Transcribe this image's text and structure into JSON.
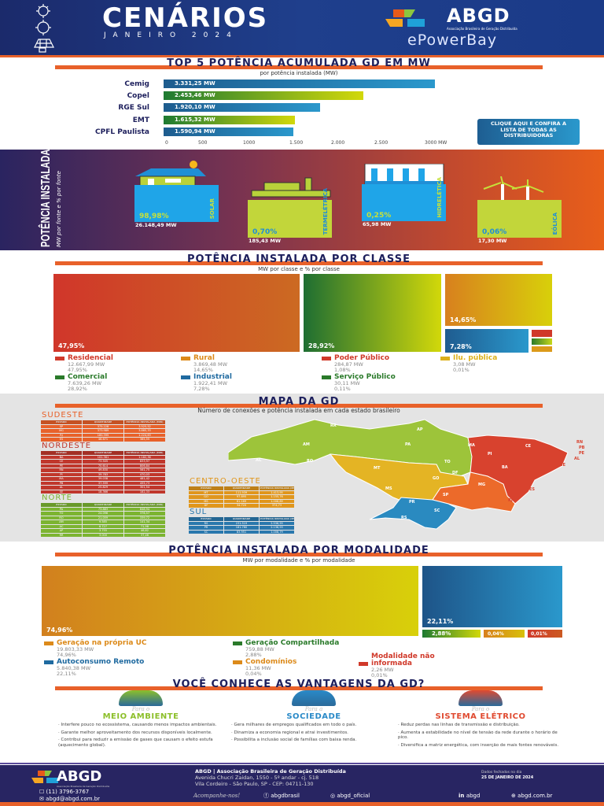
{
  "header": {
    "title": "CENÁRIOS",
    "subtitle": "JANEIRO 2024",
    "logo_text": "ABGD",
    "logo_sub": "Associação Brasileira de Geração Distribuída",
    "partner": "ePowerBay",
    "icons": [
      "sun-icon",
      "gear-sun-icon",
      "solar-panel-icon"
    ]
  },
  "top5": {
    "title": "TOP 5 POTÊNCIA ACUMULADA GD EM MW",
    "subtitle": "por potência instalada (MW)",
    "bars": [
      {
        "name": "Cemig",
        "value": 3331.25,
        "label": "3.331,25 MW",
        "color": "blue"
      },
      {
        "name": "Copel",
        "value": 2453.46,
        "label": "2.453,46 MW",
        "color": "green"
      },
      {
        "name": "RGE Sul",
        "value": 1920.1,
        "label": "1.920,10 MW",
        "color": "blue"
      },
      {
        "name": "EMT",
        "value": 1615.32,
        "label": "1.615,32 MW",
        "color": "green"
      },
      {
        "name": "CPFL Paulista",
        "value": 1590.94,
        "label": "1.590,94 MW",
        "color": "blue"
      }
    ],
    "ticks": [
      "0",
      "500",
      "1000",
      "1.500",
      "2.000",
      "2.500",
      "3000 MW"
    ],
    "cta": "CLIQUE AQUI E CONFIRA A LISTA DE TODAS AS DISTRIBUIDORAS"
  },
  "fontes": {
    "title": "POTÊNCIA INSTALADA",
    "subtitle": "MW por fonte e % por fonte",
    "items": [
      {
        "name": "SOLAR",
        "pct": "98,98%",
        "mw": "26.148,49 MW",
        "icon": "solar-house-icon"
      },
      {
        "name": "TERMELÉTRICA",
        "pct": "0,70%",
        "mw": "185,43 MW",
        "icon": "factory-icon"
      },
      {
        "name": "HIDRELÉTICA",
        "pct": "0,25%",
        "mw": "65,98 MW",
        "icon": "dam-icon"
      },
      {
        "name": "EÓLICA",
        "pct": "0,06%",
        "mw": "17,30 MW",
        "icon": "wind-turbine-icon"
      }
    ]
  },
  "classe": {
    "title": "POTÊNCIA INSTALADA POR CLASSE",
    "subtitle": "MW por classe e % por classe",
    "items": [
      {
        "name": "Residencial",
        "mw": "12.667,99 MW",
        "pct": "47,95%",
        "color": "#d0392a"
      },
      {
        "name": "Rural",
        "mw": "3.869,48 MW",
        "pct": "14,65%",
        "color": "#dc8a1a"
      },
      {
        "name": "Poder Público",
        "mw": "284,87 MW",
        "pct": "1,08%",
        "color": "#d0392a"
      },
      {
        "name": "Ilu. pública",
        "mw": "3,08 MW",
        "pct": "0,01%",
        "color": "#dcb01a"
      },
      {
        "name": "Comercial",
        "mw": "7.639,26 MW",
        "pct": "28,92%",
        "color": "#2a7a2a"
      },
      {
        "name": "Industrial",
        "mw": "1.922,41 MW",
        "pct": "7,28%",
        "color": "#1f6aa0"
      },
      {
        "name": "Serviço Público",
        "mw": "30,11 MW",
        "pct": "0,11%",
        "color": "#2a7a2a"
      }
    ]
  },
  "mapa": {
    "title": "MAPA DA GD",
    "subtitle": "Número de conexões e potência instalada em cada estado brasileiro",
    "headers": [
      "ESTADO",
      "QUANTIDADE",
      "POTÊNCIA INSTALADA (MW)"
    ],
    "regions": {
      "sudeste": {
        "name": "SUDESTE",
        "color": "#e8612a",
        "rows": [
          [
            "SP",
            "375.228",
            "3.525,52"
          ],
          [
            "MG",
            "373.989",
            "3.865,33"
          ],
          [
            "RJ",
            "160.395",
            "1.224,63"
          ],
          [
            "ES",
            "46.671",
            "385,55"
          ]
        ]
      },
      "nordeste": {
        "name": "NORDESTE",
        "color": "#c0372c",
        "rows": [
          [
            "BA",
            "102.361",
            "1.182,36"
          ],
          [
            "CE",
            "73.505",
            "833,97"
          ],
          [
            "PE",
            "70.614",
            "806,84"
          ],
          [
            "RN",
            "49.830",
            "561,75"
          ],
          [
            "PI",
            "39.783",
            "470,03"
          ],
          [
            "MA",
            "39.038",
            "481,42"
          ],
          [
            "PB",
            "37.599",
            "455,73"
          ],
          [
            "AL",
            "25.829",
            "301,54"
          ],
          [
            "SE",
            "18.366",
            "182,33"
          ]
        ]
      },
      "norte": {
        "name": "NORTE",
        "color": "#7cb431",
        "rows": [
          [
            "PA",
            "73.883",
            "848,94"
          ],
          [
            "TO",
            "24.096",
            "376,57"
          ],
          [
            "RO",
            "21.059",
            "339,72"
          ],
          [
            "AM",
            "9.585",
            "141,34"
          ],
          [
            "AC",
            "6.727",
            "71,98"
          ],
          [
            "AP",
            "3.755",
            "46,62"
          ],
          [
            "RR",
            "3.000",
            "37,46"
          ]
        ]
      },
      "centro_oeste": {
        "name": "CENTRO-OESTE",
        "color": "#e0961c",
        "rows": [
          [
            "MT",
            "111.939",
            "1.413,95"
          ],
          [
            "GO",
            "97.895",
            "1.155,76"
          ],
          [
            "MS",
            "61.169",
            "1.008,89"
          ],
          [
            "DF",
            "34.720",
            "374,73"
          ]
        ]
      },
      "sul": {
        "name": "SUL",
        "color": "#2a78ad",
        "rows": [
          [
            "RS",
            "231.519",
            "2.536,55"
          ],
          [
            "PR",
            "181.760",
            "2.136,93"
          ],
          [
            "SC",
            "83.951",
            "1.008,79"
          ]
        ]
      }
    },
    "state_labels": [
      "RR",
      "AP",
      "AM",
      "PA",
      "AC",
      "RO",
      "MA",
      "CE",
      "PI",
      "RN",
      "PB",
      "PE",
      "AL",
      "SE",
      "BA",
      "TO",
      "MT",
      "GO",
      "DF",
      "MG",
      "ES",
      "MS",
      "SP",
      "RJ",
      "PR",
      "SC",
      "RS"
    ]
  },
  "modalidade": {
    "title": "POTÊNCIA INSTALADA POR MODALIDADE",
    "subtitle": "MW por modalidade e % por modalidade",
    "items": [
      {
        "name": "Geração na própria UC",
        "mw": "19.803,33 MW",
        "pct": "74,96%",
        "color": "#dc8a1a"
      },
      {
        "name": "Geração Compartilhada",
        "mw": "759,88 MW",
        "pct": "2,88%",
        "color": "#2a7a2a"
      },
      {
        "name": "Autoconsumo Remoto",
        "mw": "5.840,38 MW",
        "pct": "22,11%",
        "color": "#1f6aa0"
      },
      {
        "name": "Condomínios",
        "mw": "11,36 MW",
        "pct": "0,04%",
        "color": "#dc8a1a"
      },
      {
        "name": "Modalidade não informada",
        "mw": "2,26 MW",
        "pct": "0,01%",
        "color": "#d0392a"
      }
    ]
  },
  "vantagens": {
    "title": "VOCÊ CONHECE AS VANTAGENS DA GD?",
    "cols": [
      {
        "pre": "Para o",
        "title": "MEIO AMBIENTE",
        "color": "#8cbf2a",
        "icon": "environment-icon",
        "points": [
          "· Interfere pouco no ecossistema, causando menos impactos ambientais.",
          "· Garante melhor aproveitamento dos recursos disponíveis localmente.",
          "· Contribui para reduzir a emissão de gases que causam o efeito estufa (aquecimento global)."
        ]
      },
      {
        "pre": "Para a",
        "title": "SOCIEDADE",
        "color": "#2a8ac8",
        "icon": "people-icon",
        "points": [
          "· Gera milhares de empregos qualificados em todo o país.",
          "· Dinamiza a economia regional e atrai investimentos.",
          "· Possibilita a inclusão social de famílias com baixa renda."
        ]
      },
      {
        "pre": "Para o",
        "title": "SISTEMA ELÉTRICO",
        "color": "#e04a30",
        "icon": "solar-grid-icon",
        "points": [
          "· Reduz perdas nas linhas de transmissão e distribuição.",
          "· Aumenta a estabilidade no nível de tensão da rede durante o horário de pico.",
          "· Diversifica a matriz energética, com inserção de mais fontes renováveis."
        ]
      }
    ]
  },
  "footer": {
    "org": "ABGD | Associação Brasileira de Geração Distribuída",
    "address1": "Avenida Chucri Zaidan, 1550 - 5º andar - cj. 518",
    "address2": "Vila Cordeiro - São Paulo, SP - CEP: 04711-130",
    "date_label": "Dados fechados no dia",
    "date": "25 DE JANEIRO DE 2024",
    "phone": "(11) 3796-3767",
    "email": "abgd@abgd.com.br",
    "follow": "Acompanhe-nos!",
    "facebook": "abgdbrasil",
    "instagram": "abgd_oficial",
    "linkedin": "abgd",
    "site": "abgd.com.br"
  }
}
